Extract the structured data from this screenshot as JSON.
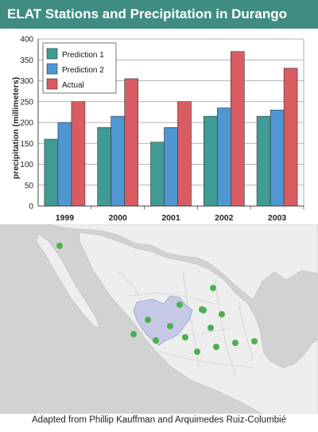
{
  "title": "ELAT Stations and Precipitation in Durango",
  "caption": "Adapted from Phillip Kauffman and Arquimedes Ruiz-Columbié",
  "colors": {
    "title_bar": "#3f8c84",
    "prediction_1": "#3f9b93",
    "prediction_2": "#4f97d2",
    "actual": "#d95c62",
    "station": "#4caf50",
    "durango_region": "#c5c9e6",
    "land": "#f0f0f0",
    "sea": "#cfcfcf"
  },
  "chart_data": {
    "type": "bar",
    "title": "",
    "xlabel": "",
    "ylabel": "precipitation (millimeters)",
    "ylim": [
      0,
      400
    ],
    "yticks": [
      "0",
      "50",
      "100",
      "150",
      "200",
      "250",
      "300",
      "350",
      "400"
    ],
    "categories": [
      "1999",
      "2000",
      "2001",
      "2002",
      "2003"
    ],
    "series": [
      {
        "name": "Prediction 1",
        "color": "#3f9b93",
        "values": [
          160,
          188,
          153,
          215,
          215
        ]
      },
      {
        "name": "Prediction 2",
        "color": "#4f97d2",
        "values": [
          200,
          215,
          188,
          235,
          230
        ]
      },
      {
        "name": "Actual",
        "color": "#d95c62",
        "values": [
          250,
          305,
          250,
          370,
          330
        ]
      }
    ],
    "grid": true,
    "legend_position": "top-left"
  },
  "map": {
    "icons": [
      "station-dot"
    ],
    "station_count": 16
  }
}
